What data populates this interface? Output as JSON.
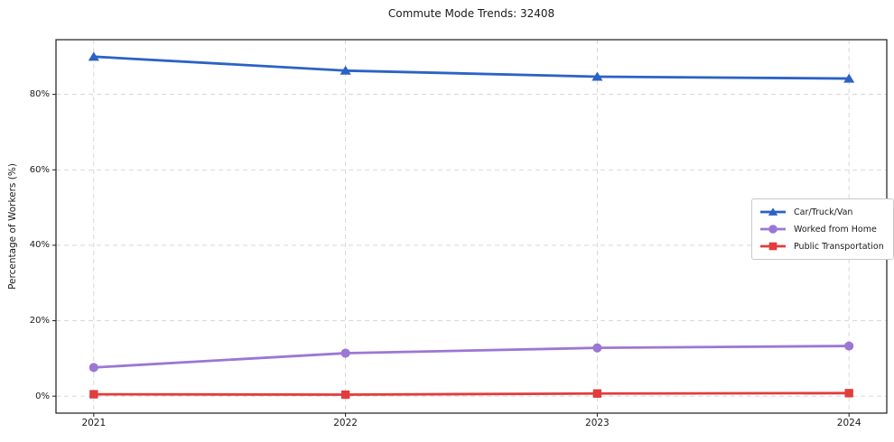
{
  "figure": {
    "background": "#ffffff"
  },
  "chart_data": {
    "type": "line",
    "title": "Commute Mode Trends: 32408",
    "xlabel": "",
    "ylabel": "Percentage of Workers (%)",
    "x": [
      2021,
      2022,
      2023,
      2024
    ],
    "x_tick_labels": [
      "2021",
      "2022",
      "2023",
      "2024"
    ],
    "y_ticks": [
      0,
      20,
      40,
      60,
      80
    ],
    "y_tick_suffix": "%",
    "xlim": [
      2020.85,
      2024.15
    ],
    "ylim": [
      -4.5,
      94.5
    ],
    "grid": true,
    "grid_style": "dashed",
    "legend_position": "center-right",
    "series": [
      {
        "name": "Car/Truck/Van",
        "color": "#2b62c5",
        "marker": "triangle",
        "values": [
          90.0,
          86.3,
          84.7,
          84.2
        ]
      },
      {
        "name": "Worked from Home",
        "color": "#9b77d4",
        "marker": "circle",
        "values": [
          7.6,
          11.4,
          12.8,
          13.3
        ]
      },
      {
        "name": "Public Transportation",
        "color": "#e23c3c",
        "marker": "square",
        "values": [
          0.5,
          0.4,
          0.7,
          0.8
        ]
      }
    ],
    "colors": {
      "grid": "#d3d3d3",
      "spine": "#1c1c1c",
      "text": "#1a1a1a"
    }
  }
}
